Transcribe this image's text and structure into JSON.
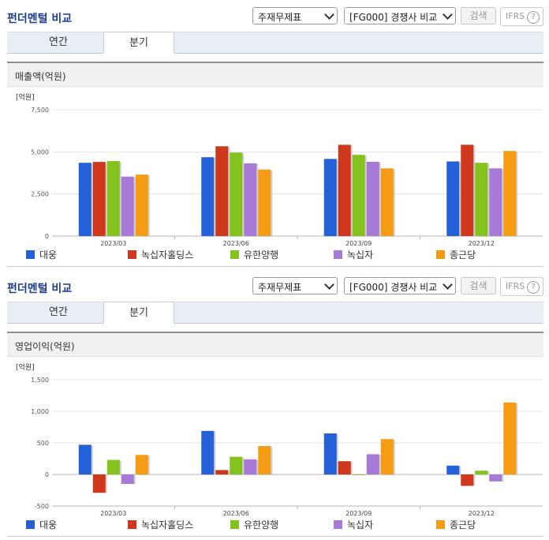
{
  "header": {
    "title": "펀더멘털 비교",
    "select1_value": "주재무제표",
    "select2_value": "[FG000] 경쟁사 비교",
    "search_label": "검색",
    "ifrs_label": "IFRS",
    "help_label": "?"
  },
  "tabs": [
    "연간",
    "분기"
  ],
  "active_tab": "분기",
  "legend": [
    {
      "name": "대웅",
      "color": "#2461d9"
    },
    {
      "name": "녹십자홀딩스",
      "color": "#d0381e"
    },
    {
      "name": "유한양행",
      "color": "#84c31e"
    },
    {
      "name": "녹십자",
      "color": "#a779d8"
    },
    {
      "name": "종근당",
      "color": "#f59b14"
    }
  ],
  "chart_data": [
    {
      "type": "bar",
      "title": "매출액(억원)",
      "unit": "[억원]",
      "categories": [
        "2023/03",
        "2023/06",
        "2023/09",
        "2023/12"
      ],
      "ylim": [
        0,
        7500
      ],
      "yticks": [
        0,
        2500,
        5000,
        7500
      ],
      "ytick_labels": [
        "0",
        "2,500",
        "5,000",
        "7,500"
      ],
      "series": [
        {
          "name": "대웅",
          "values": [
            4350,
            4680,
            4580,
            4430
          ]
        },
        {
          "name": "녹십자홀딩스",
          "values": [
            4400,
            5330,
            5420,
            5420
          ]
        },
        {
          "name": "유한양행",
          "values": [
            4450,
            4960,
            4820,
            4350
          ]
        },
        {
          "name": "녹십자",
          "values": [
            3530,
            4320,
            4410,
            4020
          ]
        },
        {
          "name": "종근당",
          "values": [
            3650,
            3950,
            4020,
            5050
          ]
        }
      ]
    },
    {
      "type": "bar",
      "title": "영업이익(억원)",
      "unit": "[억원]",
      "categories": [
        "2023/03",
        "2023/06",
        "2023/09",
        "2023/12"
      ],
      "ylim": [
        -500,
        1500
      ],
      "yticks": [
        -500,
        0,
        500,
        1000,
        1500
      ],
      "ytick_labels": [
        "-500",
        "0",
        "500",
        "1,000",
        "1,500"
      ],
      "series": [
        {
          "name": "대웅",
          "values": [
            470,
            690,
            650,
            140
          ]
        },
        {
          "name": "녹십자홀딩스",
          "values": [
            -290,
            70,
            210,
            -180
          ]
        },
        {
          "name": "유한양행",
          "values": [
            230,
            280,
            -10,
            60
          ]
        },
        {
          "name": "녹십자",
          "values": [
            -150,
            240,
            320,
            -110
          ]
        },
        {
          "name": "종근당",
          "values": [
            310,
            450,
            560,
            1140
          ]
        }
      ]
    }
  ]
}
